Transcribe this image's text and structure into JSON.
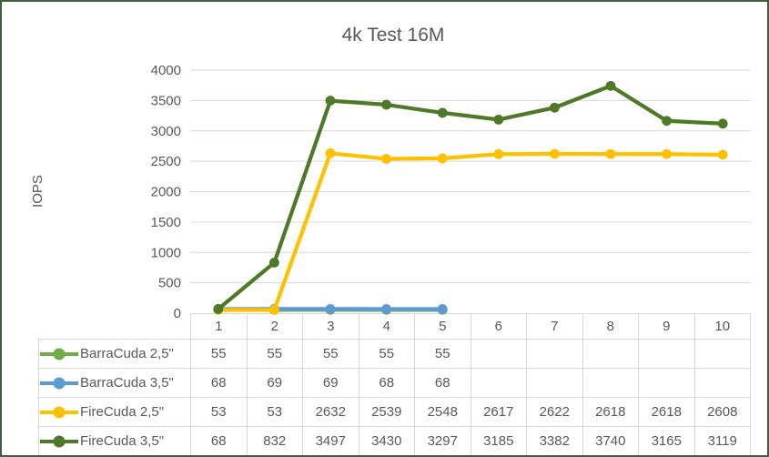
{
  "window": {
    "background": "#FFFFFF",
    "border_color": "#3F5E41"
  },
  "styles": {
    "text_color": "#595959",
    "grid_color": "#D9D9D9"
  },
  "chart_data": {
    "type": "line",
    "title": "4k Test 16M",
    "xlabel": "",
    "ylabel": "IOPS",
    "categories": [
      "1",
      "2",
      "3",
      "4",
      "5",
      "6",
      "7",
      "8",
      "9",
      "10"
    ],
    "ylim": [
      0,
      4000
    ],
    "ytick_step": 500,
    "yticks": [
      "0",
      "500",
      "1000",
      "1500",
      "2000",
      "2500",
      "3000",
      "3500",
      "4000"
    ],
    "grid": true,
    "legend_position": "data-table-left",
    "series": [
      {
        "name": "BarraCuda 2,5\"",
        "color": "#70AD47",
        "values": [
          55,
          55,
          55,
          55,
          55,
          null,
          null,
          null,
          null,
          null
        ]
      },
      {
        "name": "BarraCuda 3,5\"",
        "color": "#5B9BD5",
        "values": [
          68,
          69,
          69,
          68,
          68,
          null,
          null,
          null,
          null,
          null
        ]
      },
      {
        "name": "FireCuda 2,5\"",
        "color": "#FFC000",
        "values": [
          53,
          53,
          2632,
          2539,
          2548,
          2617,
          2622,
          2618,
          2618,
          2608
        ]
      },
      {
        "name": "FireCuda 3,5\"",
        "color": "#4E7A27",
        "values": [
          68,
          832,
          3497,
          3430,
          3297,
          3185,
          3382,
          3740,
          3165,
          3119
        ]
      }
    ]
  }
}
